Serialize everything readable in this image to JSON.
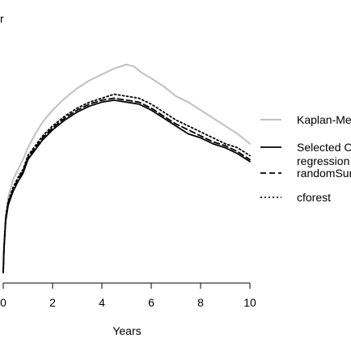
{
  "chart_data": {
    "type": "line",
    "title": "",
    "top_left_fragment": "r",
    "xlabel": "Years",
    "ylabel": "",
    "xlim": [
      0,
      10
    ],
    "x_ticks": [
      0,
      2,
      4,
      6,
      8,
      10
    ],
    "x_tick_labels": [
      "0",
      "2",
      "4",
      "6",
      "8",
      "10"
    ],
    "y_range_relative": [
      0,
      1
    ],
    "grid": false,
    "legend_position": "right",
    "series": [
      {
        "name": "Kaplan-Mei",
        "legend_lines": [
          "Kaplan-Mei"
        ],
        "color": "#c0c0c0",
        "dash": "solid",
        "points": [
          [
            0.0,
            0.01
          ],
          [
            0.03,
            0.12
          ],
          [
            0.1,
            0.28
          ],
          [
            0.2,
            0.38
          ],
          [
            0.4,
            0.47
          ],
          [
            0.6,
            0.52
          ],
          [
            0.8,
            0.57
          ],
          [
            1.0,
            0.63
          ],
          [
            1.3,
            0.7
          ],
          [
            1.6,
            0.76
          ],
          [
            2.0,
            0.82
          ],
          [
            2.5,
            0.88
          ],
          [
            3.0,
            0.93
          ],
          [
            3.5,
            0.97
          ],
          [
            4.0,
            1.0
          ],
          [
            4.5,
            1.03
          ],
          [
            5.0,
            1.05
          ],
          [
            5.3,
            1.04
          ],
          [
            5.6,
            1.01
          ],
          [
            6.0,
            0.98
          ],
          [
            6.5,
            0.94
          ],
          [
            7.0,
            0.89
          ],
          [
            7.5,
            0.86
          ],
          [
            8.0,
            0.82
          ],
          [
            8.5,
            0.78
          ],
          [
            9.0,
            0.74
          ],
          [
            9.5,
            0.7
          ],
          [
            10.0,
            0.65
          ]
        ]
      },
      {
        "name": "Selected Ce regression",
        "legend_lines": [
          "Selected Ce",
          "regression"
        ],
        "color": "#000000",
        "dash": "solid",
        "points": [
          [
            0.0,
            0.0
          ],
          [
            0.03,
            0.12
          ],
          [
            0.1,
            0.26
          ],
          [
            0.2,
            0.34
          ],
          [
            0.4,
            0.41
          ],
          [
            0.6,
            0.46
          ],
          [
            0.8,
            0.5
          ],
          [
            1.0,
            0.57
          ],
          [
            1.3,
            0.62
          ],
          [
            1.6,
            0.67
          ],
          [
            2.0,
            0.72
          ],
          [
            2.5,
            0.77
          ],
          [
            3.0,
            0.81
          ],
          [
            3.5,
            0.84
          ],
          [
            4.0,
            0.86
          ],
          [
            4.5,
            0.87
          ],
          [
            5.0,
            0.86
          ],
          [
            5.5,
            0.85
          ],
          [
            6.0,
            0.82
          ],
          [
            6.5,
            0.78
          ],
          [
            7.0,
            0.74
          ],
          [
            7.5,
            0.7
          ],
          [
            8.0,
            0.68
          ],
          [
            8.5,
            0.65
          ],
          [
            9.0,
            0.63
          ],
          [
            9.5,
            0.6
          ],
          [
            10.0,
            0.56
          ]
        ]
      },
      {
        "name": "randomSur",
        "legend_lines": [
          "randomSur"
        ],
        "color": "#000000",
        "dash": "dashed",
        "points": [
          [
            0.0,
            0.0
          ],
          [
            0.03,
            0.12
          ],
          [
            0.1,
            0.27
          ],
          [
            0.2,
            0.35
          ],
          [
            0.4,
            0.42
          ],
          [
            0.6,
            0.47
          ],
          [
            0.8,
            0.51
          ],
          [
            1.0,
            0.58
          ],
          [
            1.3,
            0.63
          ],
          [
            1.6,
            0.68
          ],
          [
            2.0,
            0.73
          ],
          [
            2.5,
            0.78
          ],
          [
            3.0,
            0.82
          ],
          [
            3.5,
            0.85
          ],
          [
            4.0,
            0.87
          ],
          [
            4.5,
            0.88
          ],
          [
            5.0,
            0.87
          ],
          [
            5.5,
            0.86
          ],
          [
            6.0,
            0.83
          ],
          [
            6.5,
            0.79
          ],
          [
            7.0,
            0.75
          ],
          [
            7.5,
            0.72
          ],
          [
            8.0,
            0.69
          ],
          [
            8.5,
            0.66
          ],
          [
            9.0,
            0.64
          ],
          [
            9.5,
            0.61
          ],
          [
            10.0,
            0.57
          ]
        ]
      },
      {
        "name": "cforest",
        "legend_lines": [
          "cforest"
        ],
        "color": "#000000",
        "dash": "dotted",
        "points": [
          [
            0.0,
            0.0
          ],
          [
            0.03,
            0.13
          ],
          [
            0.1,
            0.28
          ],
          [
            0.2,
            0.36
          ],
          [
            0.4,
            0.43
          ],
          [
            0.6,
            0.48
          ],
          [
            0.8,
            0.52
          ],
          [
            1.0,
            0.59
          ],
          [
            1.3,
            0.64
          ],
          [
            1.6,
            0.69
          ],
          [
            2.0,
            0.74
          ],
          [
            2.5,
            0.79
          ],
          [
            3.0,
            0.83
          ],
          [
            3.5,
            0.86
          ],
          [
            4.0,
            0.88
          ],
          [
            4.5,
            0.9
          ],
          [
            5.0,
            0.89
          ],
          [
            5.5,
            0.88
          ],
          [
            6.0,
            0.85
          ],
          [
            6.5,
            0.81
          ],
          [
            7.0,
            0.77
          ],
          [
            7.5,
            0.74
          ],
          [
            8.0,
            0.71
          ],
          [
            8.5,
            0.68
          ],
          [
            9.0,
            0.65
          ],
          [
            9.5,
            0.63
          ],
          [
            10.0,
            0.59
          ]
        ]
      }
    ]
  }
}
